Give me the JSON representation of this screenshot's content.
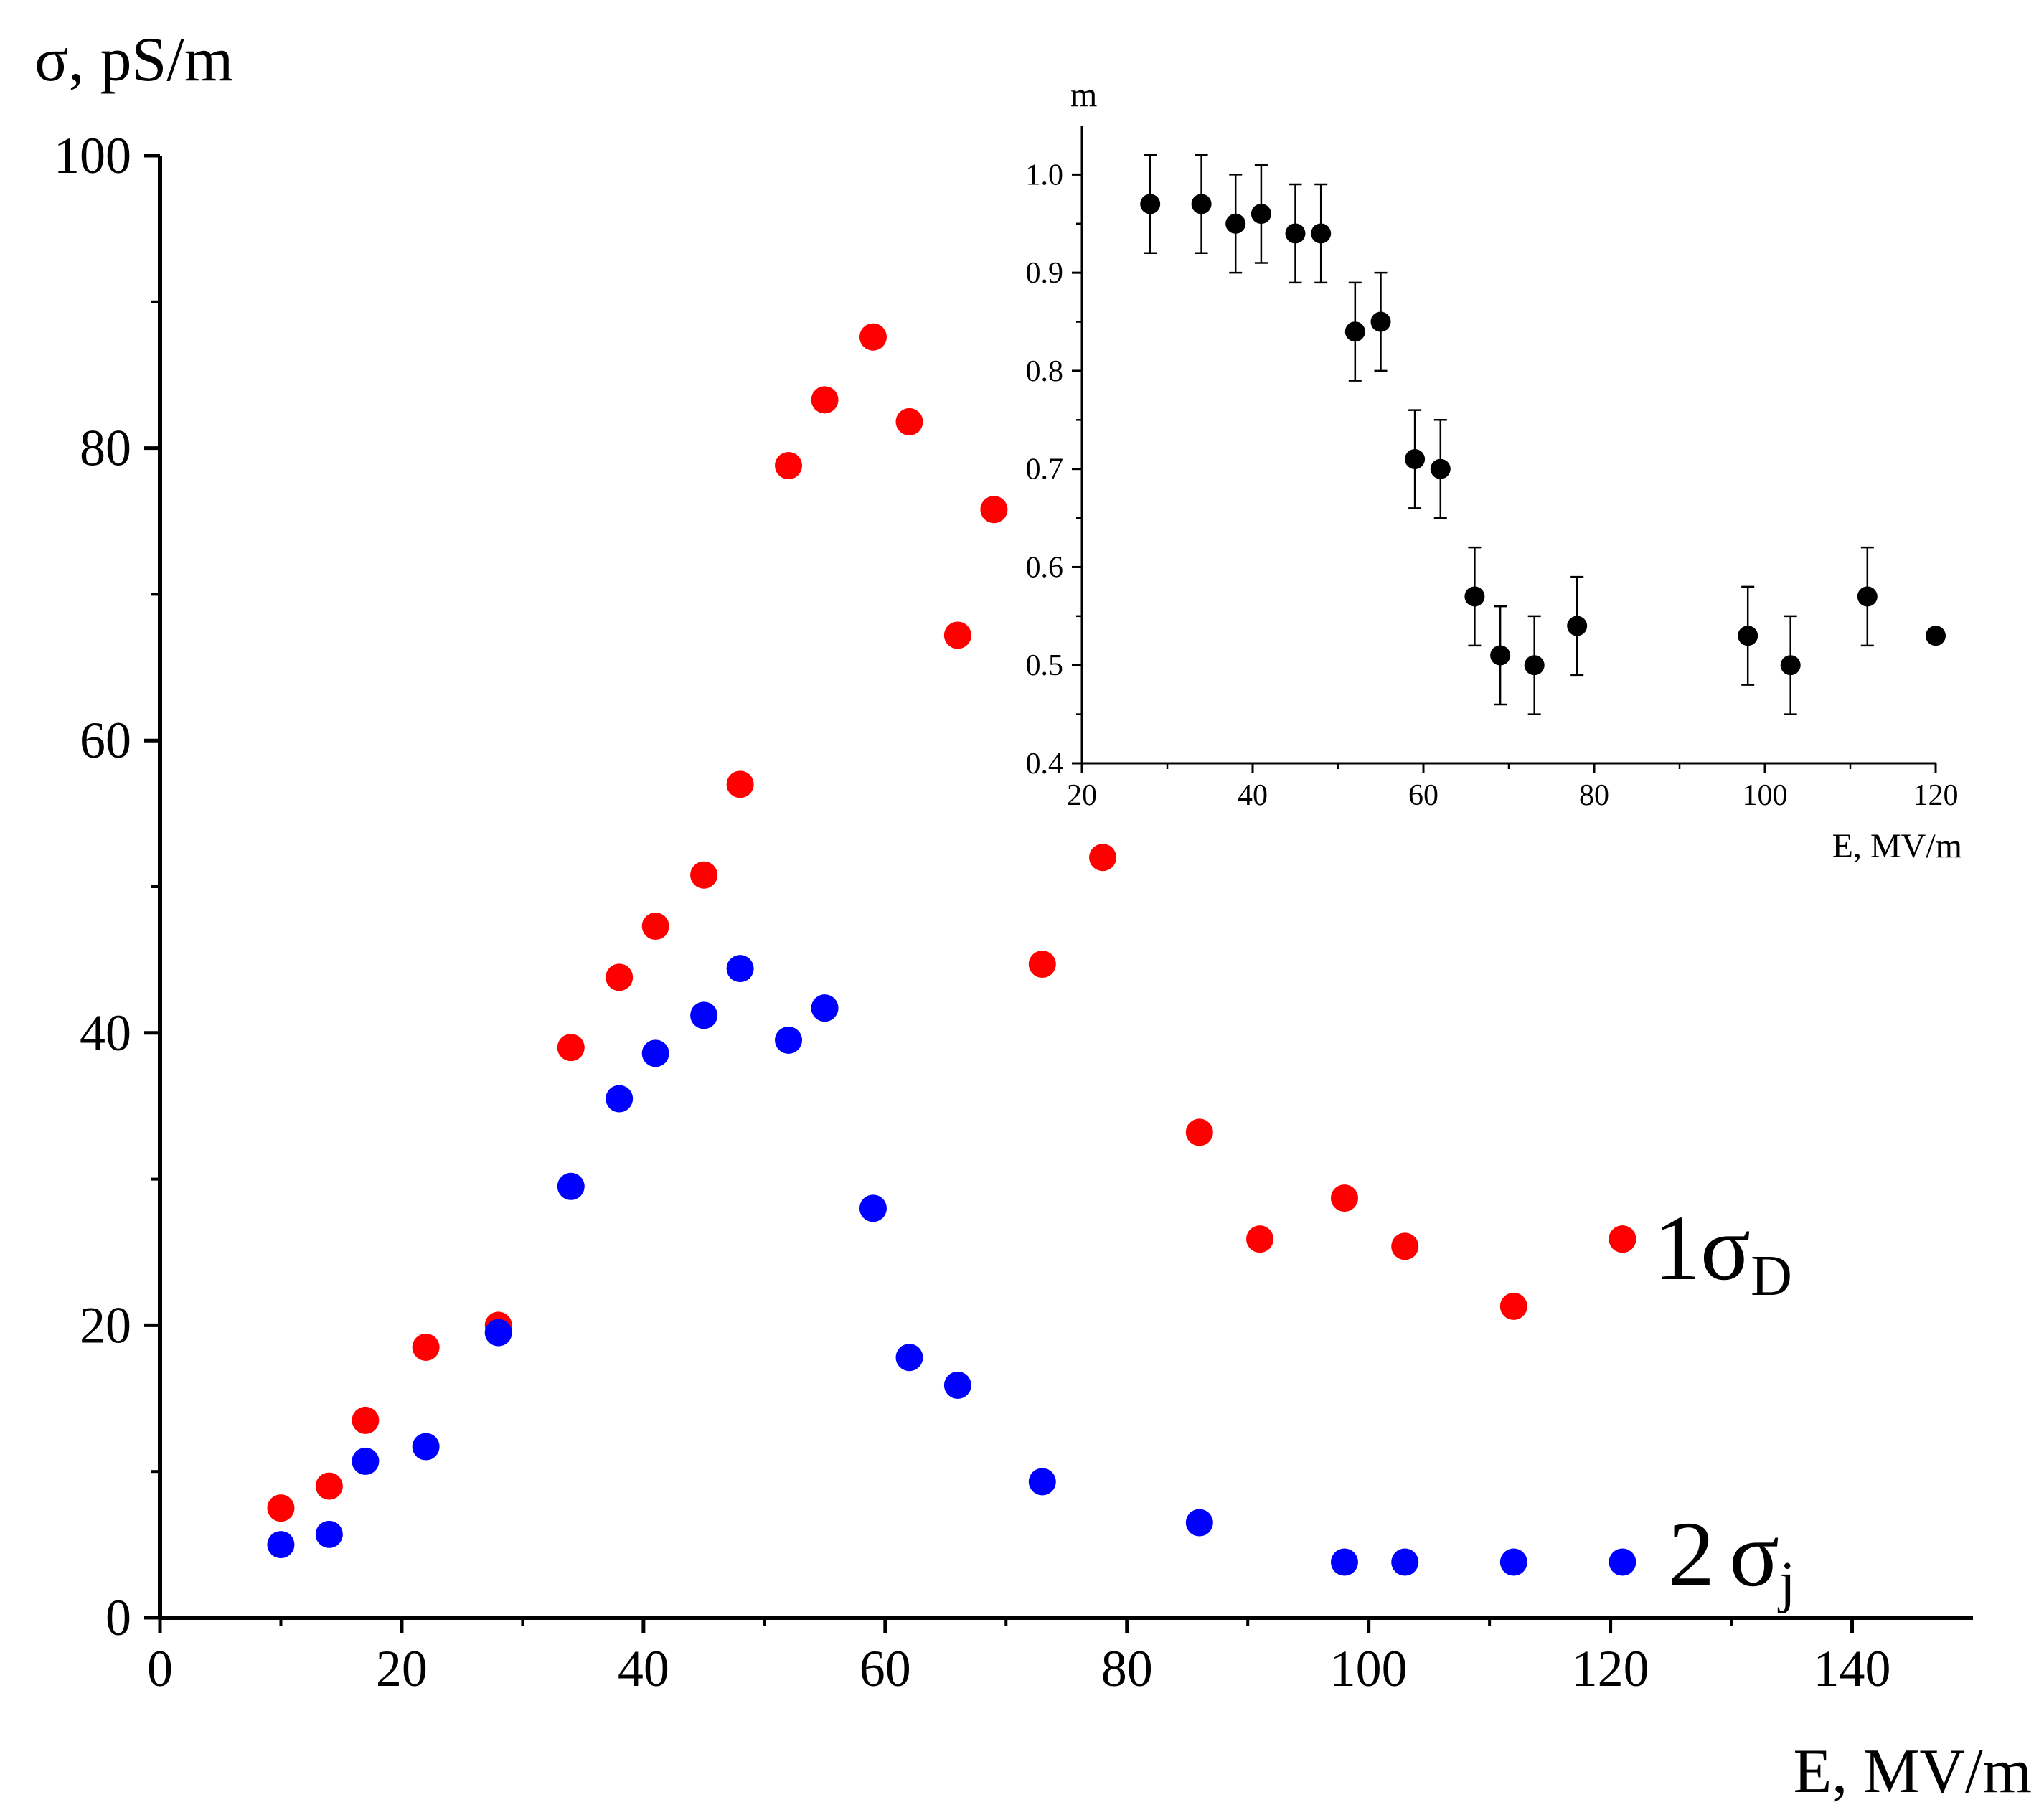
{
  "chart_data": [
    {
      "type": "scatter",
      "title": "",
      "xlabel": "E, MV/m",
      "ylabel": "σ, pS/m",
      "xlim": [
        0,
        150
      ],
      "ylim": [
        0,
        100
      ],
      "xticks": [
        "0",
        "20",
        "40",
        "60",
        "80",
        "100",
        "120",
        "140"
      ],
      "yticks": [
        "0",
        "20",
        "40",
        "60",
        "80",
        "100"
      ],
      "series": [
        {
          "name": "1σD",
          "number": "1",
          "symbol": "σ",
          "subscript": "D",
          "color": "#ff0000",
          "x": [
            10,
            14,
            17,
            22,
            28,
            34,
            38,
            41,
            45,
            48,
            52,
            55,
            59,
            62,
            66,
            69,
            73,
            78,
            86,
            91,
            98,
            103,
            112,
            121
          ],
          "y": [
            7.5,
            9,
            13.5,
            18.5,
            20,
            39,
            43.8,
            47.3,
            50.8,
            57,
            78.8,
            83.3,
            87.6,
            81.8,
            67.2,
            75.8,
            44.7,
            52,
            33.2,
            25.9,
            28.7,
            25.4,
            21.3,
            25.9
          ]
        },
        {
          "name": "2σj",
          "number": "2",
          "symbol": "σ",
          "subscript": "j",
          "color": "#0000ff",
          "x": [
            10,
            14,
            17,
            22,
            28,
            34,
            38,
            41,
            45,
            48,
            52,
            55,
            59,
            62,
            66,
            73,
            86,
            98,
            103,
            112,
            121
          ],
          "y": [
            5,
            5.7,
            10.7,
            11.7,
            19.5,
            29.5,
            35.5,
            38.6,
            41.2,
            44.4,
            39.5,
            41.7,
            28,
            17.8,
            15.9,
            9.3,
            6.5,
            3.8,
            3.8,
            3.8,
            3.8
          ]
        }
      ]
    },
    {
      "type": "scatter",
      "title": "",
      "xlabel": "E, MV/m",
      "ylabel": "m",
      "xlim": [
        20,
        120
      ],
      "ylim": [
        0.4,
        1.05
      ],
      "xticks": [
        "20",
        "40",
        "60",
        "80",
        "100",
        "120"
      ],
      "yticks": [
        "0.4",
        "0.5",
        "0.6",
        "0.7",
        "0.8",
        "0.9",
        "1.0"
      ],
      "series": [
        {
          "name": "m",
          "color": "#000000",
          "x": [
            28,
            34,
            38,
            41,
            45,
            48,
            52,
            55,
            59,
            62,
            66,
            69,
            73,
            78,
            98,
            103,
            112,
            120
          ],
          "y": [
            0.97,
            0.97,
            0.95,
            0.96,
            0.94,
            0.94,
            0.84,
            0.85,
            0.71,
            0.7,
            0.57,
            0.51,
            0.5,
            0.54,
            0.53,
            0.5,
            0.57,
            0.53
          ],
          "error": [
            0.05,
            0.05,
            0.05,
            0.05,
            0.05,
            0.05,
            0.05,
            0.05,
            0.05,
            0.05,
            0.05,
            0.05,
            0.05,
            0.05,
            0.05,
            0.05,
            0.05,
            0
          ]
        }
      ]
    }
  ]
}
